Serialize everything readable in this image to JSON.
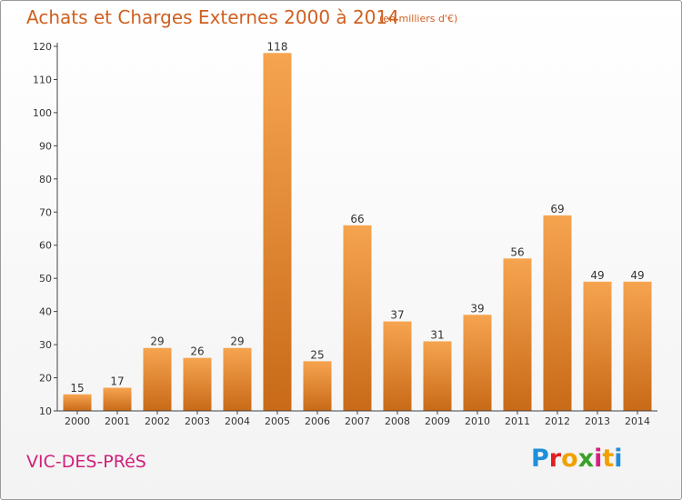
{
  "chart_data": {
    "type": "bar",
    "title": "Achats et Charges Externes 2000 à 2014",
    "subtitle": "(en milliers d'€)",
    "categories": [
      "2000",
      "2001",
      "2002",
      "2003",
      "2004",
      "2005",
      "2006",
      "2007",
      "2008",
      "2009",
      "2010",
      "2011",
      "2012",
      "2013",
      "2014"
    ],
    "values": [
      15,
      17,
      29,
      26,
      29,
      118,
      25,
      66,
      37,
      31,
      39,
      56,
      69,
      49,
      49
    ],
    "ylim": [
      10,
      120
    ],
    "yticks": [
      10,
      20,
      30,
      40,
      50,
      60,
      70,
      80,
      90,
      100,
      110,
      120
    ],
    "xlabel": "",
    "ylabel": "",
    "grid": false,
    "bar_color_light": "#f6a450",
    "bar_color_dark": "#c86a18"
  },
  "footer": {
    "commune": "VIC-DES-PRéS",
    "logo_text": "Proxiti",
    "logo_colors": [
      "#1e8fd8",
      "#e02020",
      "#f0a000",
      "#3aa028",
      "#d82080",
      "#f0a000",
      "#1e8fd8"
    ]
  }
}
